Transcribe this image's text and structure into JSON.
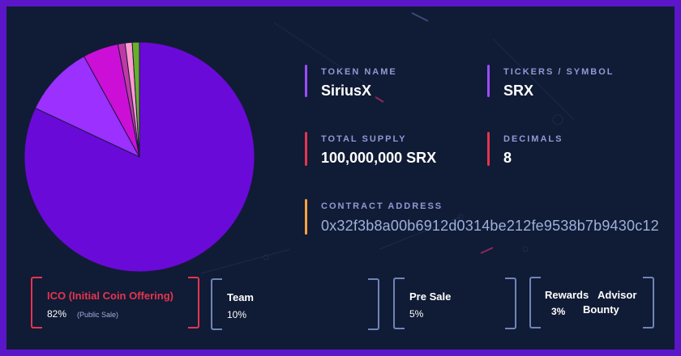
{
  "colors": {
    "frame": "#5b16c9",
    "background": "#101b35",
    "ico": "#e5354f",
    "card_border": "#6f84b8",
    "bar_purple": "#9b4dff",
    "bar_red": "#e5354f",
    "bar_orange": "#f4a340"
  },
  "token": {
    "name_label": "TOKEN NAME",
    "name_value": "SiriusX",
    "ticker_label": "TICKERS / SYMBOL",
    "ticker_value": "SRX",
    "supply_label": "TOTAL SUPPLY",
    "supply_value": "100,000,000 SRX",
    "decimals_label": "DECIMALS",
    "decimals_value": "8",
    "contract_label": "CONTRACT ADDRESS",
    "contract_value": "0x32f3b8a00b6912d0314be212fe9538b7b9430c12"
  },
  "chart_data": {
    "type": "pie",
    "slices": [
      {
        "label": "ICO (Initial Coin Offering)",
        "value": 82,
        "color": "#6a0ad8"
      },
      {
        "label": "Team",
        "value": 10,
        "color": "#9b30ff"
      },
      {
        "label": "Pre Sale",
        "value": 5,
        "color": "#cc0fd6"
      },
      {
        "label": "Rewards",
        "value": 1,
        "color": "#c03aa6"
      },
      {
        "label": "Advisor",
        "value": 1,
        "color": "#ff9cd0"
      },
      {
        "label": "Bounty",
        "value": 1,
        "color": "#68b02a"
      }
    ]
  },
  "cards": {
    "ico": {
      "title": "ICO (Initial Coin Offering)",
      "pct": "82%",
      "note": "(Public Sale)"
    },
    "team": {
      "title": "Team",
      "pct": "10%"
    },
    "presale": {
      "title": "Pre Sale",
      "pct": "5%"
    },
    "rewards": {
      "title": "Rewards",
      "pct": "3%",
      "advisor": "Advisor",
      "bounty": "Bounty"
    }
  }
}
